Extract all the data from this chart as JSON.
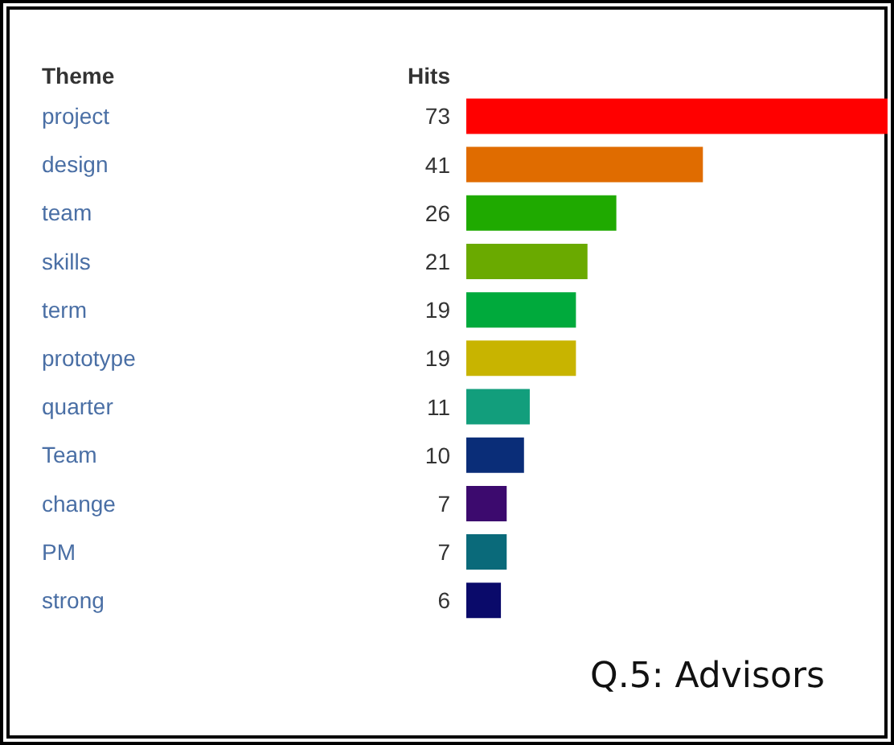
{
  "chart_data": {
    "type": "bar",
    "orientation": "horizontal",
    "title": "Q.5: Advisors",
    "ylabel": "Theme",
    "xlabel": "Hits",
    "categories": [
      "project",
      "design",
      "team",
      "skills",
      "term",
      "prototype",
      "quarter",
      "Team",
      "change",
      "PM",
      "strong"
    ],
    "values": [
      73,
      41,
      26,
      21,
      19,
      19,
      11,
      10,
      7,
      7,
      6
    ],
    "colors": [
      "#ff0000",
      "#e06c00",
      "#1faa00",
      "#6aaa00",
      "#00aa3c",
      "#c8b400",
      "#129e7c",
      "#0a2d78",
      "#3c0a6e",
      "#0a6a7a",
      "#0a0a6a"
    ],
    "data_labels": true
  }
}
